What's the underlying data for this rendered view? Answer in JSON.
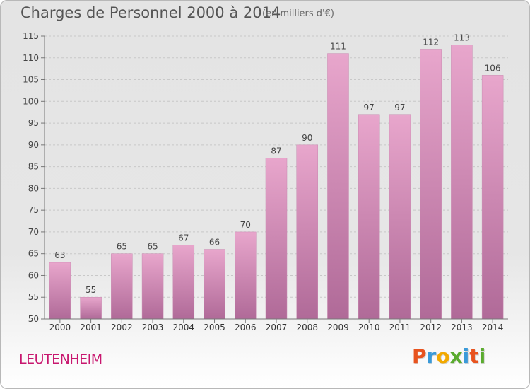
{
  "chart_data": {
    "type": "bar",
    "title": "Charges de Personnel 2000 à 2014",
    "subtitle": "(en milliers d'€)",
    "categories": [
      "2000",
      "2001",
      "2002",
      "2003",
      "2004",
      "2005",
      "2006",
      "2007",
      "2008",
      "2009",
      "2010",
      "2011",
      "2012",
      "2013",
      "2014"
    ],
    "values": [
      63,
      55,
      65,
      65,
      67,
      66,
      70,
      87,
      90,
      111,
      97,
      97,
      112,
      113,
      106
    ],
    "ylim": [
      50,
      115
    ],
    "yticks": [
      50,
      55,
      60,
      65,
      70,
      75,
      80,
      85,
      90,
      95,
      100,
      105,
      110,
      115
    ],
    "grid": true,
    "bar_color_top": "#e8a6cc",
    "bar_color_bottom": "#b06a98"
  },
  "footer": {
    "commune": "LEUTENHEIM",
    "commune_color": "#c8176f"
  },
  "logo": {
    "text": "Proxiti",
    "letters": [
      {
        "ch": "P",
        "color": "#e8531e"
      },
      {
        "ch": "r",
        "color": "#3a9ad9"
      },
      {
        "ch": "o",
        "color": "#f2a900"
      },
      {
        "ch": "x",
        "color": "#5aab2e"
      },
      {
        "ch": "i",
        "color": "#3a9ad9"
      },
      {
        "ch": "t",
        "color": "#e8531e"
      },
      {
        "ch": "i",
        "color": "#5aab2e"
      }
    ]
  }
}
